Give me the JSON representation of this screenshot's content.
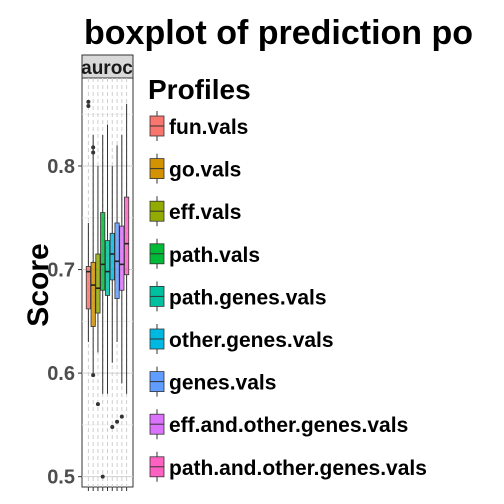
{
  "chart_data": {
    "type": "boxplot",
    "title": "boxplot of prediction po",
    "xlabel": "",
    "ylabel": "Score",
    "ylim": [
      0.49,
      0.885
    ],
    "yticks": [
      0.5,
      0.6,
      0.7,
      0.8
    ],
    "ytick_labels": [
      "0.5",
      "0.6",
      "0.7",
      "0.8"
    ],
    "panel": "auroc",
    "grid": true,
    "legend": {
      "title": "Profiles",
      "position": "right"
    },
    "series": [
      {
        "name": "fun.vals",
        "color": "#F8766D",
        "min": 0.63,
        "q1": 0.662,
        "median": 0.698,
        "q3": 0.703,
        "max": 0.745,
        "outliers": [
          0.858,
          0.862
        ]
      },
      {
        "name": "go.vals",
        "color": "#D39200",
        "min": 0.6,
        "q1": 0.645,
        "median": 0.685,
        "q3": 0.707,
        "max": 0.83,
        "outliers": [
          0.598,
          0.813,
          0.818
        ]
      },
      {
        "name": "eff.vals",
        "color": "#93AA00",
        "min": 0.62,
        "q1": 0.658,
        "median": 0.682,
        "q3": 0.715,
        "max": 0.8,
        "outliers": [
          0.57
        ]
      },
      {
        "name": "path.vals",
        "color": "#00BA38",
        "min": 0.58,
        "q1": 0.68,
        "median": 0.705,
        "q3": 0.755,
        "max": 0.83,
        "outliers": [
          0.5
        ]
      },
      {
        "name": "path.genes.vals",
        "color": "#00C19F",
        "min": 0.58,
        "q1": 0.675,
        "median": 0.698,
        "q3": 0.728,
        "max": 0.84,
        "outliers": []
      },
      {
        "name": "other.genes.vals",
        "color": "#00B9E3",
        "min": 0.61,
        "q1": 0.69,
        "median": 0.715,
        "q3": 0.735,
        "max": 0.8,
        "outliers": [
          0.548
        ]
      },
      {
        "name": "genes.vals",
        "color": "#619CFF",
        "min": 0.63,
        "q1": 0.672,
        "median": 0.708,
        "q3": 0.745,
        "max": 0.82,
        "outliers": [
          0.553
        ]
      },
      {
        "name": "eff.and.other.genes.vals",
        "color": "#DB72FB",
        "min": 0.59,
        "q1": 0.68,
        "median": 0.705,
        "q3": 0.742,
        "max": 0.83,
        "outliers": [
          0.558
        ]
      },
      {
        "name": "path.and.other.genes.vals",
        "color": "#FF61C3",
        "min": 0.58,
        "q1": 0.695,
        "median": 0.725,
        "q3": 0.77,
        "max": 0.86,
        "outliers": []
      }
    ]
  }
}
